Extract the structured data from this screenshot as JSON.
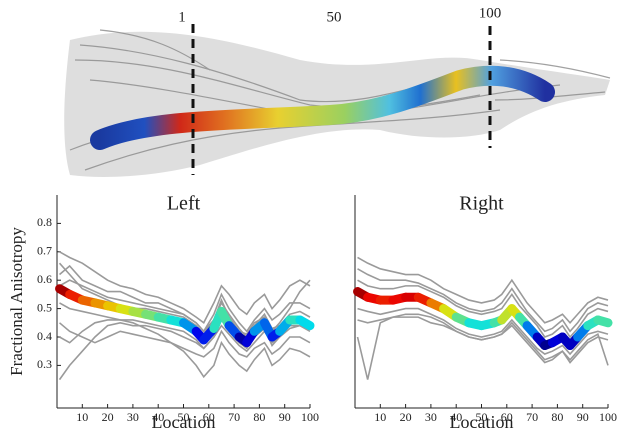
{
  "tract": {
    "labels": [
      "1",
      "50",
      "100"
    ]
  },
  "chart_data": [
    {
      "type": "line",
      "title": "Left",
      "xlabel": "Location",
      "ylabel": "Fractional Anisotropy",
      "xlim": [
        0,
        100
      ],
      "xticks": [
        10,
        20,
        30,
        40,
        50,
        60,
        70,
        80,
        90,
        100
      ],
      "ylim": [
        0.15,
        0.9
      ],
      "yticks": [
        0.3,
        0.4,
        0.5,
        0.6,
        0.7,
        0.8
      ],
      "x": [
        1,
        5,
        10,
        15,
        20,
        25,
        30,
        35,
        40,
        45,
        50,
        55,
        58,
        62,
        65,
        68,
        72,
        75,
        78,
        82,
        85,
        88,
        92,
        96,
        100
      ],
      "series": [
        {
          "color": "#9a9a9a",
          "values": [
            0.7,
            0.68,
            0.66,
            0.63,
            0.6,
            0.58,
            0.57,
            0.55,
            0.54,
            0.52,
            0.5,
            0.47,
            0.45,
            0.52,
            0.58,
            0.55,
            0.5,
            0.48,
            0.52,
            0.55,
            0.5,
            0.53,
            0.58,
            0.6,
            0.58
          ]
        },
        {
          "color": "#9a9a9a",
          "values": [
            0.45,
            0.42,
            0.4,
            0.38,
            0.4,
            0.42,
            0.41,
            0.4,
            0.39,
            0.38,
            0.36,
            0.34,
            0.33,
            0.36,
            0.42,
            0.38,
            0.34,
            0.33,
            0.36,
            0.38,
            0.34,
            0.36,
            0.4,
            0.4,
            0.38
          ]
        },
        {
          "color": "#9a9a9a",
          "values": [
            0.62,
            0.65,
            0.6,
            0.58,
            0.56,
            0.56,
            0.54,
            0.52,
            0.52,
            0.5,
            0.48,
            0.45,
            0.42,
            0.48,
            0.55,
            0.5,
            0.45,
            0.42,
            0.46,
            0.5,
            0.46,
            0.48,
            0.52,
            0.52,
            0.5
          ]
        },
        {
          "color": "#9a9a9a",
          "values": [
            0.25,
            0.3,
            0.35,
            0.4,
            0.44,
            0.45,
            0.44,
            0.44,
            0.43,
            0.42,
            0.4,
            0.38,
            0.36,
            0.4,
            0.44,
            0.41,
            0.37,
            0.35,
            0.38,
            0.42,
            0.38,
            0.4,
            0.43,
            0.44,
            0.42
          ]
        },
        {
          "color": "#9a9a9a",
          "values": [
            0.52,
            0.5,
            0.49,
            0.48,
            0.47,
            0.46,
            0.46,
            0.45,
            0.44,
            0.43,
            0.42,
            0.39,
            0.36,
            0.4,
            0.46,
            0.42,
            0.38,
            0.36,
            0.4,
            0.43,
            0.37,
            0.4,
            0.44,
            0.44,
            0.43
          ]
        },
        {
          "color": "#9a9a9a",
          "values": [
            0.58,
            0.6,
            0.58,
            0.56,
            0.54,
            0.53,
            0.52,
            0.51,
            0.5,
            0.49,
            0.48,
            0.45,
            0.42,
            0.46,
            0.52,
            0.48,
            0.43,
            0.4,
            0.44,
            0.48,
            0.43,
            0.44,
            0.48,
            0.49,
            0.47
          ]
        },
        {
          "color": "#9a9a9a",
          "values": [
            0.4,
            0.38,
            0.42,
            0.45,
            0.46,
            0.46,
            0.45,
            0.43,
            0.41,
            0.38,
            0.35,
            0.3,
            0.26,
            0.3,
            0.38,
            0.34,
            0.3,
            0.28,
            0.32,
            0.36,
            0.3,
            0.32,
            0.36,
            0.35,
            0.33
          ]
        },
        {
          "color": "#9a9a9a",
          "values": [
            0.66,
            0.62,
            0.57,
            0.55,
            0.53,
            0.51,
            0.5,
            0.5,
            0.49,
            0.48,
            0.47,
            0.44,
            0.41,
            0.46,
            0.53,
            0.47,
            0.42,
            0.41,
            0.45,
            0.47,
            0.42,
            0.45,
            0.5,
            0.56,
            0.6
          ]
        },
        {
          "colormap": "jet",
          "values": [
            0.57,
            0.55,
            0.53,
            0.52,
            0.51,
            0.5,
            0.49,
            0.48,
            0.47,
            0.46,
            0.45,
            0.42,
            0.39,
            0.43,
            0.49,
            0.44,
            0.4,
            0.38,
            0.42,
            0.45,
            0.4,
            0.42,
            0.46,
            0.46,
            0.44
          ]
        }
      ]
    },
    {
      "type": "line",
      "title": "Right",
      "xlabel": "Location",
      "xlim": [
        0,
        100
      ],
      "xticks": [
        10,
        20,
        30,
        40,
        50,
        60,
        70,
        80,
        90,
        100
      ],
      "ylim": [
        0.15,
        0.9
      ],
      "x": [
        1,
        5,
        10,
        15,
        20,
        25,
        30,
        35,
        40,
        45,
        50,
        55,
        58,
        62,
        65,
        68,
        72,
        75,
        78,
        82,
        85,
        88,
        92,
        96,
        100
      ],
      "series": [
        {
          "color": "#9a9a9a",
          "values": [
            0.68,
            0.66,
            0.64,
            0.63,
            0.62,
            0.62,
            0.6,
            0.57,
            0.55,
            0.53,
            0.52,
            0.53,
            0.55,
            0.6,
            0.56,
            0.52,
            0.48,
            0.45,
            0.46,
            0.48,
            0.45,
            0.48,
            0.52,
            0.54,
            0.53
          ]
        },
        {
          "color": "#9a9a9a",
          "values": [
            0.4,
            0.25,
            0.45,
            0.47,
            0.48,
            0.48,
            0.47,
            0.45,
            0.42,
            0.4,
            0.39,
            0.4,
            0.41,
            0.45,
            0.42,
            0.39,
            0.35,
            0.32,
            0.33,
            0.35,
            0.32,
            0.35,
            0.39,
            0.41,
            0.3
          ]
        },
        {
          "color": "#9a9a9a",
          "values": [
            0.6,
            0.58,
            0.57,
            0.57,
            0.58,
            0.58,
            0.56,
            0.54,
            0.51,
            0.49,
            0.48,
            0.49,
            0.5,
            0.55,
            0.51,
            0.48,
            0.44,
            0.4,
            0.41,
            0.44,
            0.4,
            0.43,
            0.48,
            0.5,
            0.49
          ]
        },
        {
          "color": "#9a9a9a",
          "values": [
            0.5,
            0.49,
            0.48,
            0.49,
            0.5,
            0.5,
            0.48,
            0.46,
            0.43,
            0.41,
            0.4,
            0.41,
            0.42,
            0.46,
            0.43,
            0.4,
            0.36,
            0.34,
            0.35,
            0.37,
            0.34,
            0.37,
            0.41,
            0.42,
            0.41
          ]
        },
        {
          "color": "#9a9a9a",
          "values": [
            0.64,
            0.62,
            0.6,
            0.6,
            0.6,
            0.59,
            0.57,
            0.55,
            0.52,
            0.5,
            0.49,
            0.5,
            0.52,
            0.57,
            0.53,
            0.49,
            0.45,
            0.42,
            0.43,
            0.46,
            0.42,
            0.45,
            0.5,
            0.52,
            0.51
          ]
        },
        {
          "color": "#9a9a9a",
          "values": [
            0.46,
            0.45,
            0.46,
            0.47,
            0.47,
            0.47,
            0.45,
            0.44,
            0.42,
            0.4,
            0.39,
            0.4,
            0.41,
            0.44,
            0.41,
            0.38,
            0.34,
            0.31,
            0.32,
            0.35,
            0.31,
            0.34,
            0.38,
            0.4,
            0.39
          ]
        },
        {
          "colormap": "jet",
          "values": [
            0.56,
            0.54,
            0.53,
            0.53,
            0.54,
            0.54,
            0.52,
            0.5,
            0.47,
            0.45,
            0.44,
            0.45,
            0.46,
            0.5,
            0.47,
            0.44,
            0.4,
            0.37,
            0.38,
            0.4,
            0.37,
            0.4,
            0.44,
            0.46,
            0.45
          ]
        }
      ]
    }
  ]
}
